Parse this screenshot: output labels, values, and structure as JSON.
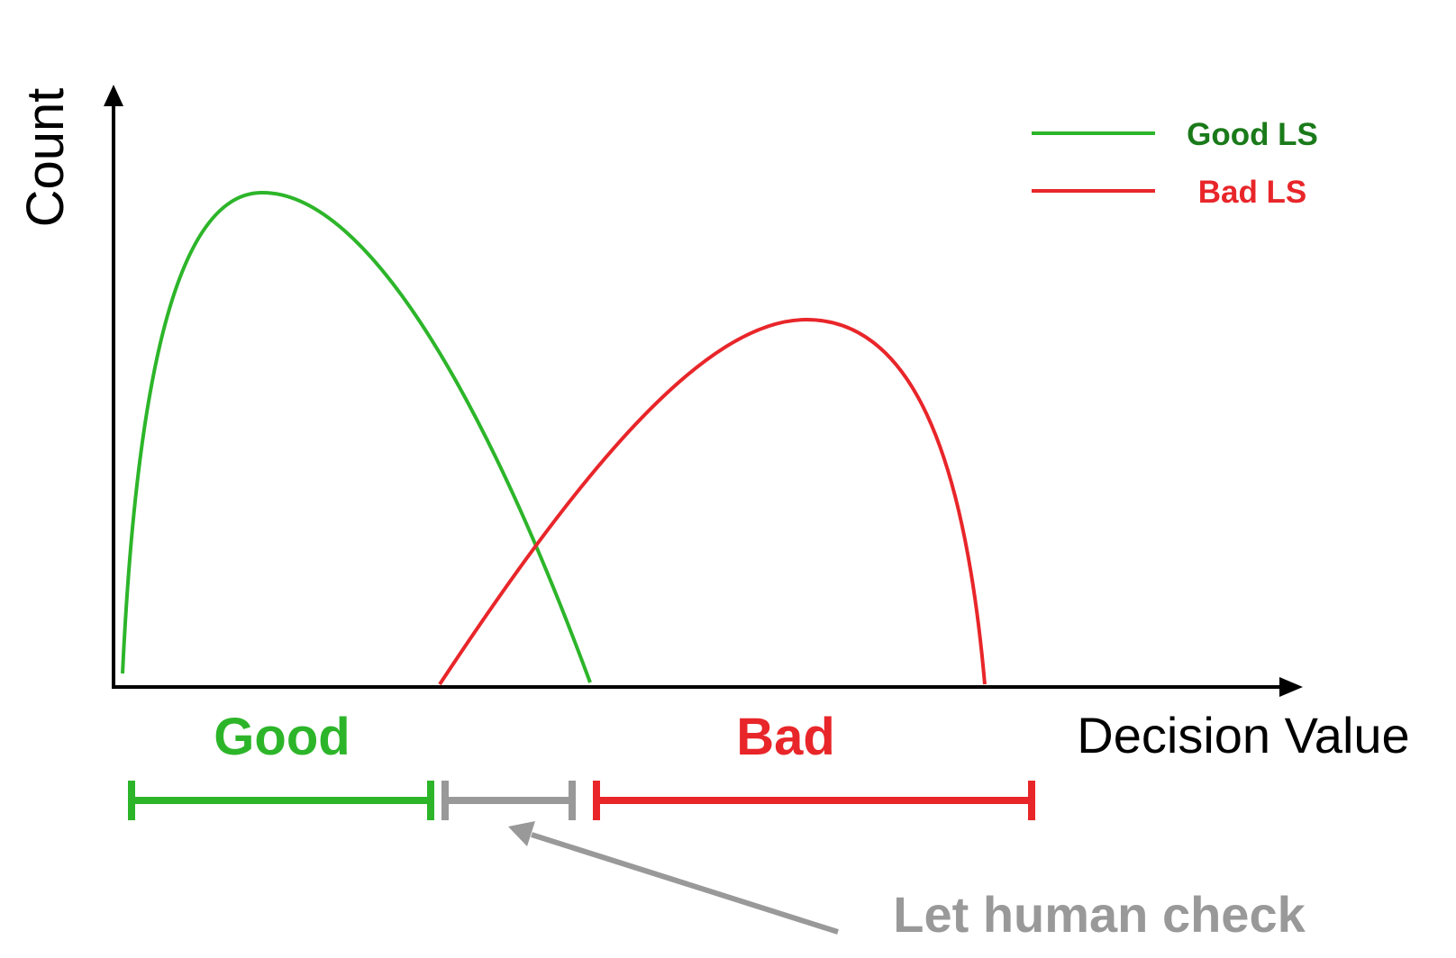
{
  "axes": {
    "y_label": "Count",
    "x_label": "Decision Value"
  },
  "legend": {
    "items": [
      {
        "label": "Good LS",
        "line_color": "#2db52a",
        "text_color": "#1a7a1a"
      },
      {
        "label": "Bad LS",
        "line_color": "#e8262a",
        "text_color": "#e8262a"
      }
    ]
  },
  "regions": {
    "good": {
      "label": "Good",
      "color": "#2db52a"
    },
    "bad": {
      "label": "Bad",
      "color": "#e8262a"
    },
    "human": {
      "color": "#999999"
    }
  },
  "annotation": {
    "text": "Let human check",
    "color": "#999999"
  },
  "colors": {
    "axis": "#000000",
    "good_curve": "#2db52a",
    "bad_curve": "#e8262a"
  }
}
